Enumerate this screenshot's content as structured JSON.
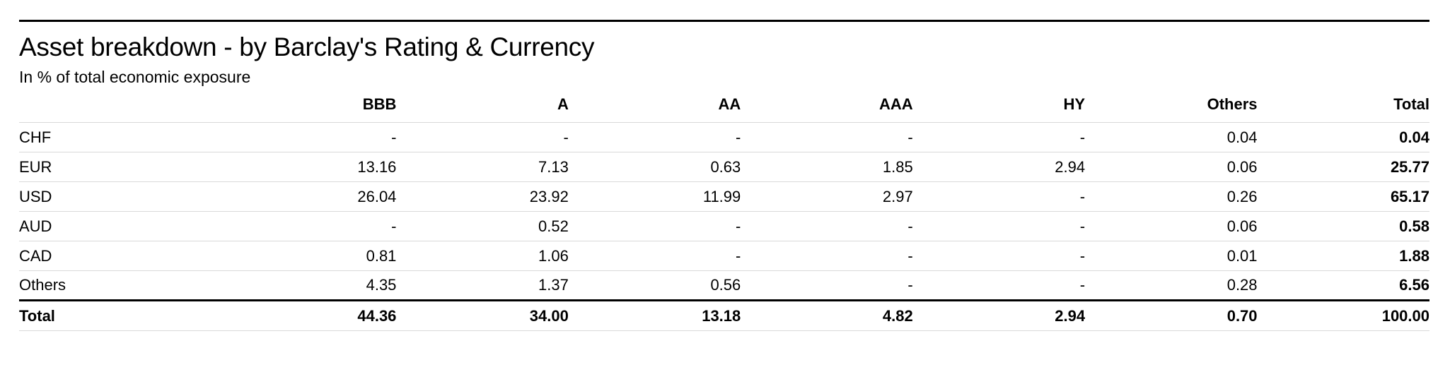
{
  "page": {
    "title": "Asset breakdown - by Barclay's Rating & Currency",
    "subtitle": "In % of total economic exposure"
  },
  "table": {
    "columns": [
      "BBB",
      "A",
      "AA",
      "AAA",
      "HY",
      "Others",
      "Total"
    ],
    "rows": [
      {
        "label": "CHF",
        "values": [
          "-",
          "-",
          "-",
          "-",
          "-",
          "0.04",
          "0.04"
        ]
      },
      {
        "label": "EUR",
        "values": [
          "13.16",
          "7.13",
          "0.63",
          "1.85",
          "2.94",
          "0.06",
          "25.77"
        ]
      },
      {
        "label": "USD",
        "values": [
          "26.04",
          "23.92",
          "11.99",
          "2.97",
          "-",
          "0.26",
          "65.17"
        ]
      },
      {
        "label": "AUD",
        "values": [
          "-",
          "0.52",
          "-",
          "-",
          "-",
          "0.06",
          "0.58"
        ]
      },
      {
        "label": "CAD",
        "values": [
          "0.81",
          "1.06",
          "-",
          "-",
          "-",
          "0.01",
          "1.88"
        ]
      },
      {
        "label": "Others",
        "values": [
          "4.35",
          "1.37",
          "0.56",
          "-",
          "-",
          "0.28",
          "6.56"
        ]
      }
    ],
    "total_row": {
      "label": "Total",
      "values": [
        "44.36",
        "34.00",
        "13.18",
        "4.82",
        "2.94",
        "0.70",
        "100.00"
      ]
    }
  },
  "colors": {
    "text": "#000000",
    "rule_heavy": "#000000",
    "rule_light": "#d9d9d9",
    "background": "#ffffff"
  }
}
